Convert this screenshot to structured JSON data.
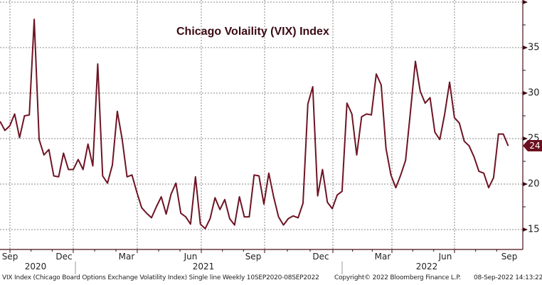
{
  "chart_data": {
    "type": "line",
    "title": "Chicago Volaility (VIX) Index",
    "frequency": "Weekly",
    "x_range": [
      "2020-09-10",
      "2022-09-08"
    ],
    "x_tick_labels": [
      "Sep",
      "Dec",
      "Mar",
      "Jun",
      "Sep",
      "Dec",
      "Mar",
      "Jun",
      "Sep"
    ],
    "year_labels": [
      "2020",
      "2021",
      "2022"
    ],
    "y_tick_labels": [
      "15",
      "20",
      "25",
      "30",
      "35"
    ],
    "ylim": [
      13,
      40
    ],
    "y_axis_side": "right",
    "grid": true,
    "last_value_label": "24",
    "color": "#6e1423",
    "values": [
      26.9,
      25.9,
      26.4,
      27.7,
      25.1,
      27.5,
      27.6,
      38.1,
      24.9,
      23.2,
      23.8,
      20.9,
      20.8,
      23.4,
      21.6,
      21.6,
      22.7,
      21.6,
      24.4,
      22.0,
      33.2,
      20.9,
      20.1,
      22.1,
      28.0,
      24.9,
      20.8,
      21.0,
      19.1,
      17.4,
      16.8,
      16.3,
      17.5,
      18.6,
      16.7,
      18.9,
      20.1,
      16.8,
      16.4,
      15.6,
      20.8,
      15.6,
      15.1,
      16.2,
      18.5,
      17.2,
      18.3,
      16.2,
      15.5,
      18.6,
      16.4,
      16.4,
      21.0,
      20.9,
      17.8,
      21.2,
      18.6,
      16.4,
      15.5,
      16.2,
      16.5,
      16.3,
      17.9,
      28.8,
      30.7,
      18.7,
      21.6,
      18.0,
      17.3,
      18.8,
      19.2,
      28.9,
      27.7,
      23.2,
      27.4,
      27.7,
      27.6,
      32.1,
      30.9,
      23.9,
      21.0,
      19.6,
      21.0,
      22.6,
      28.0,
      33.5,
      30.2,
      28.9,
      29.5,
      25.7,
      24.9,
      27.7,
      31.2,
      27.3,
      26.7,
      24.7,
      24.2,
      23.0,
      21.4,
      21.2,
      19.6,
      20.7,
      25.5,
      25.5,
      24.2
    ]
  },
  "footer": {
    "description": "VIX Index (Chicago Board Options Exchange Volatility Index) Single line  Weekly 10SEP2020-08SEP2022",
    "copyright": "Copyright© 2022 Bloomberg Finance L.P.",
    "timestamp": "08-Sep-2022 14:13:22"
  }
}
